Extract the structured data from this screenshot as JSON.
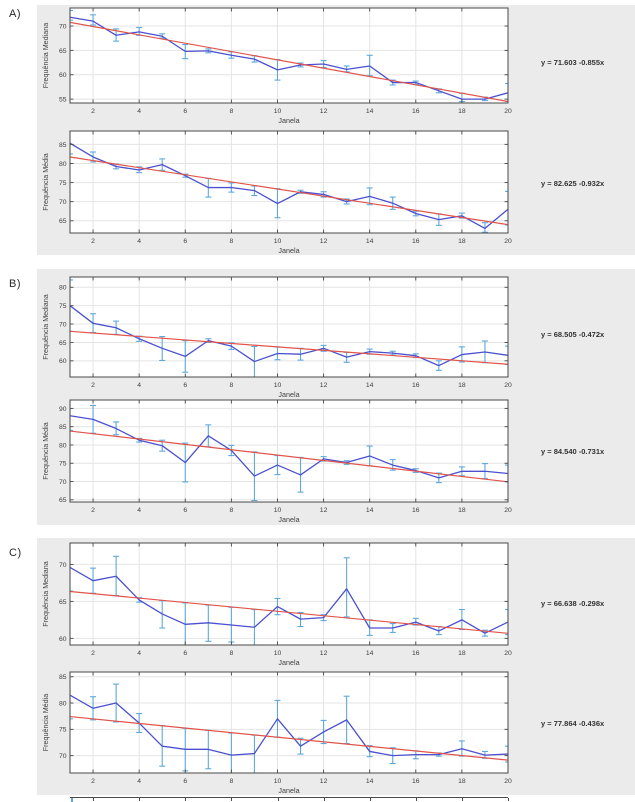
{
  "palette": {
    "panel_bg": "#ebebeb",
    "axes_bg": "#ffffff",
    "grid": "#e4e4e4",
    "axis": "#484848",
    "text": "#3f3f3f",
    "line": "#4b51ce",
    "errorbar": "#5fa8da",
    "trend": "#e1544b"
  },
  "chart_data": {
    "type": "line",
    "subtype": "errorbar-with-linear-trend",
    "sections": [
      {
        "label": "A)",
        "charts": [
          {
            "name": "median-frequency",
            "ylabel": "Frequência Mediana",
            "xlabel": "Janela",
            "equation": "y = 71.603 -0.855x",
            "trend": {
              "intercept": 71.603,
              "slope": -0.855
            },
            "x": [
              1,
              2,
              3,
              4,
              5,
              6,
              7,
              8,
              9,
              10,
              11,
              12,
              13,
              14,
              15,
              16,
              17,
              18,
              19,
              20
            ],
            "y": [
              71.8,
              71.0,
              68.1,
              68.8,
              67.9,
              64.8,
              64.9,
              64.0,
              63.2,
              61.0,
              62.0,
              62.2,
              61.1,
              61.8,
              58.4,
              58.4,
              56.7,
              55.0,
              55.0,
              56.3
            ],
            "err_lo": [
              71.2,
              70.2,
              66.9,
              68.1,
              67.5,
              63.3,
              64.5,
              63.4,
              62.6,
              58.9,
              61.6,
              61.5,
              60.6,
              59.8,
              57.9,
              58.0,
              56.3,
              54.5,
              54.7,
              54.5
            ],
            "err_hi": [
              73.2,
              72.3,
              69.4,
              69.7,
              68.4,
              66.2,
              65.3,
              64.7,
              63.9,
              63.1,
              62.4,
              62.9,
              61.8,
              64.0,
              58.9,
              58.7,
              57.1,
              56.2,
              55.4,
              58.2
            ],
            "yticks": [
              55,
              60,
              65,
              70
            ],
            "ylim": [
              54.2,
              73.7
            ],
            "xticks": [
              2,
              4,
              6,
              8,
              10,
              12,
              14,
              16,
              18,
              20
            ],
            "xlim": [
              1,
              20
            ],
            "grid": true
          },
          {
            "name": "mean-frequency",
            "ylabel": "Frequência Média",
            "xlabel": "Janela",
            "equation": "y = 82.625 -0.932x",
            "trend": {
              "intercept": 82.625,
              "slope": -0.932
            },
            "x": [
              1,
              2,
              3,
              4,
              5,
              6,
              7,
              8,
              9,
              10,
              11,
              12,
              13,
              14,
              15,
              16,
              17,
              18,
              19,
              20
            ],
            "y": [
              85.3,
              81.7,
              79.2,
              78.3,
              79.7,
              76.8,
              73.7,
              73.7,
              72.9,
              69.5,
              72.6,
              71.9,
              70.0,
              71.4,
              69.6,
              66.9,
              65.3,
              66.3,
              63.0,
              68.0
            ],
            "err_lo": [
              82.5,
              80.4,
              78.6,
              77.6,
              78.2,
              76.4,
              71.2,
              72.5,
              71.6,
              65.8,
              72.2,
              71.2,
              69.4,
              69.2,
              68.0,
              66.3,
              63.8,
              65.7,
              62.0,
              63.9
            ],
            "err_hi": [
              89.0,
              83.0,
              79.8,
              79.1,
              81.2,
              77.2,
              76.1,
              74.9,
              74.1,
              73.4,
              73.0,
              72.6,
              70.7,
              73.6,
              71.2,
              67.5,
              66.8,
              67.0,
              64.5,
              72.7
            ],
            "yticks": [
              65,
              70,
              75,
              80,
              85
            ],
            "ylim": [
              61.8,
              88.5
            ],
            "xticks": [
              2,
              4,
              6,
              8,
              10,
              12,
              14,
              16,
              18,
              20
            ],
            "xlim": [
              1,
              20
            ],
            "grid": true
          }
        ]
      },
      {
        "label": "B)",
        "charts": [
          {
            "name": "median-frequency",
            "ylabel": "Frequência Mediana",
            "xlabel": "Janela",
            "equation": "y = 68.505 -0.472x",
            "trend": {
              "intercept": 68.505,
              "slope": -0.472
            },
            "x": [
              1,
              2,
              3,
              4,
              5,
              6,
              7,
              8,
              9,
              10,
              11,
              12,
              13,
              14,
              15,
              16,
              17,
              18,
              19,
              20
            ],
            "y": [
              75.0,
              70.2,
              69.0,
              66.0,
              63.4,
              61.2,
              65.5,
              64.0,
              59.8,
              62.0,
              61.8,
              63.4,
              61.0,
              62.5,
              62.1,
              61.4,
              58.7,
              61.7,
              62.4,
              61.5
            ],
            "err_lo": [
              68.0,
              67.7,
              67.2,
              65.3,
              60.1,
              56.9,
              65.0,
              63.1,
              55.3,
              60.3,
              60.2,
              62.6,
              59.6,
              61.8,
              61.6,
              60.9,
              57.4,
              59.7,
              59.5,
              59.0
            ],
            "err_hi": [
              82.0,
              72.8,
              70.8,
              66.7,
              66.6,
              65.5,
              66.0,
              64.9,
              63.9,
              63.8,
              63.4,
              64.2,
              62.3,
              63.2,
              62.6,
              61.9,
              60.0,
              63.8,
              65.4,
              64.0
            ],
            "yticks": [
              60,
              65,
              70,
              75,
              80
            ],
            "ylim": [
              55.6,
              82.8
            ],
            "xticks": [
              2,
              4,
              6,
              8,
              10,
              12,
              14,
              16,
              18,
              20
            ],
            "xlim": [
              1,
              20
            ],
            "grid": true
          },
          {
            "name": "mean-frequency",
            "ylabel": "Frequência Média",
            "xlabel": "Janela",
            "equation": "y = 84.540 -0.731x",
            "trend": {
              "intercept": 84.54,
              "slope": -0.731
            },
            "x": [
              1,
              2,
              3,
              4,
              5,
              6,
              7,
              8,
              9,
              10,
              11,
              12,
              13,
              14,
              15,
              16,
              17,
              18,
              19,
              20
            ],
            "y": [
              88.0,
              87.0,
              84.5,
              81.3,
              79.8,
              75.2,
              82.5,
              78.5,
              71.5,
              74.5,
              71.8,
              76.2,
              75.2,
              77.0,
              74.5,
              73.0,
              71.0,
              72.8,
              72.8,
              72.2
            ],
            "err_lo": [
              84.0,
              83.2,
              82.8,
              80.8,
              78.3,
              69.9,
              79.5,
              77.1,
              64.8,
              71.9,
              67.1,
              75.6,
              74.7,
              74.3,
              73.1,
              72.5,
              69.7,
              71.6,
              70.8,
              69.9
            ],
            "err_hi": [
              92.5,
              90.8,
              86.3,
              81.8,
              81.3,
              80.5,
              85.5,
              79.9,
              78.1,
              77.1,
              76.6,
              76.8,
              75.7,
              79.7,
              76.0,
              73.5,
              72.3,
              74.0,
              74.9,
              74.5
            ],
            "yticks": [
              65,
              70,
              75,
              80,
              85,
              90
            ],
            "ylim": [
              64.4,
              92.3
            ],
            "xticks": [
              2,
              4,
              6,
              8,
              10,
              12,
              14,
              16,
              18,
              20
            ],
            "xlim": [
              1,
              20
            ],
            "grid": true
          }
        ]
      },
      {
        "label": "C)",
        "charts": [
          {
            "name": "median-frequency",
            "ylabel": "Frequência Mediana",
            "xlabel": "Janela",
            "equation": "y = 66.638 -0.298x",
            "trend": {
              "intercept": 66.638,
              "slope": -0.298
            },
            "x": [
              1,
              2,
              3,
              4,
              5,
              6,
              7,
              8,
              9,
              10,
              11,
              12,
              13,
              14,
              15,
              16,
              17,
              18,
              19,
              20
            ],
            "y": [
              69.6,
              67.8,
              68.4,
              65.2,
              63.3,
              61.9,
              62.1,
              61.8,
              61.5,
              64.3,
              62.6,
              62.8,
              66.7,
              61.4,
              61.4,
              62.2,
              61.0,
              62.5,
              60.7,
              62.2
            ],
            "err_lo": [
              66.4,
              66.1,
              65.8,
              64.9,
              61.4,
              58.9,
              59.6,
              59.5,
              59.1,
              63.2,
              61.6,
              62.4,
              62.9,
              60.4,
              60.8,
              61.8,
              60.5,
              61.2,
              60.3,
              60.5
            ],
            "err_hi": [
              72.9,
              69.5,
              71.1,
              65.5,
              65.1,
              64.8,
              64.5,
              64.2,
              63.9,
              65.4,
              63.5,
              63.2,
              70.9,
              62.5,
              62.0,
              62.7,
              61.6,
              63.9,
              61.1,
              63.9
            ],
            "yticks": [
              60,
              65,
              70
            ],
            "ylim": [
              59.1,
              72.9
            ],
            "xticks": [
              2,
              4,
              6,
              8,
              10,
              12,
              14,
              16,
              18,
              20
            ],
            "xlim": [
              1,
              20
            ],
            "grid": true
          },
          {
            "name": "mean-frequency",
            "ylabel": "Frequência Média",
            "xlabel": "Janela",
            "equation": "y = 77.864 -0.436x",
            "trend": {
              "intercept": 77.864,
              "slope": -0.436
            },
            "x": [
              1,
              2,
              3,
              4,
              5,
              6,
              7,
              8,
              9,
              10,
              11,
              12,
              13,
              14,
              15,
              16,
              17,
              18,
              19,
              20
            ],
            "y": [
              81.5,
              79.0,
              80.0,
              76.2,
              71.8,
              71.2,
              71.2,
              70.1,
              70.4,
              77.0,
              71.8,
              74.5,
              76.8,
              70.8,
              70.0,
              70.2,
              70.2,
              71.3,
              70.1,
              70.3
            ],
            "err_lo": [
              77.0,
              76.8,
              76.4,
              74.4,
              68.0,
              67.1,
              67.5,
              65.8,
              66.7,
              73.5,
              70.3,
              72.3,
              72.3,
              69.8,
              68.5,
              69.4,
              69.9,
              69.9,
              69.5,
              68.8
            ],
            "err_hi": [
              86.2,
              81.2,
              83.6,
              78.0,
              75.7,
              75.2,
              74.8,
              74.3,
              73.9,
              80.5,
              73.3,
              76.7,
              81.3,
              71.9,
              71.5,
              70.9,
              70.5,
              72.8,
              70.8,
              71.8
            ],
            "yticks": [
              70,
              75,
              80,
              85
            ],
            "ylim": [
              66.7,
              85.9
            ],
            "xticks": [
              2,
              4,
              6,
              8,
              10,
              12,
              14,
              16,
              18,
              20
            ],
            "xlim": [
              1,
              20
            ],
            "grid": true
          }
        ]
      }
    ]
  }
}
